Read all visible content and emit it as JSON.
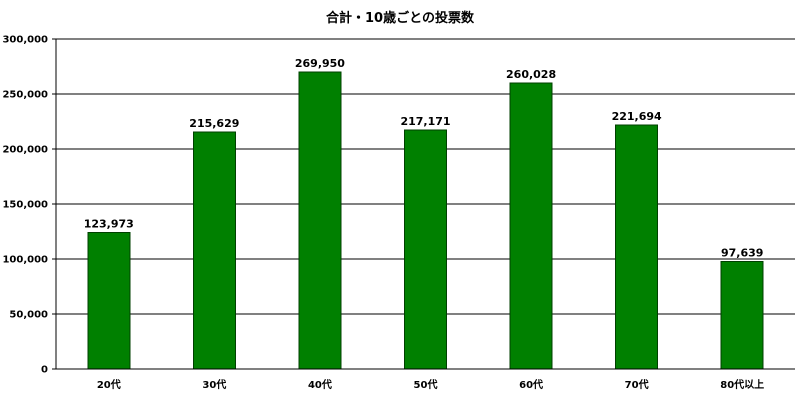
{
  "chart_data": {
    "type": "bar",
    "title": "合計・10歳ごとの投票数",
    "categories": [
      "20代",
      "30代",
      "40代",
      "50代",
      "60代",
      "70代",
      "80代以上"
    ],
    "values": [
      123973,
      215629,
      269950,
      217171,
      260028,
      221694,
      97639
    ],
    "value_labels": [
      "123,973",
      "215,629",
      "269,950",
      "217,171",
      "260,028",
      "221,694",
      "97,639"
    ],
    "y_ticks": [
      0,
      50000,
      100000,
      150000,
      200000,
      250000,
      300000
    ],
    "y_tick_labels": [
      "0",
      "50,000",
      "100,000",
      "150,000",
      "200,000",
      "250,000",
      "300,000"
    ],
    "ylim": [
      0,
      300000
    ],
    "xlabel": "",
    "ylabel": "",
    "grid": true,
    "legend": "none",
    "bar_color": "#008000",
    "bar_border_color": "#004000",
    "grid_color": "#000000"
  }
}
